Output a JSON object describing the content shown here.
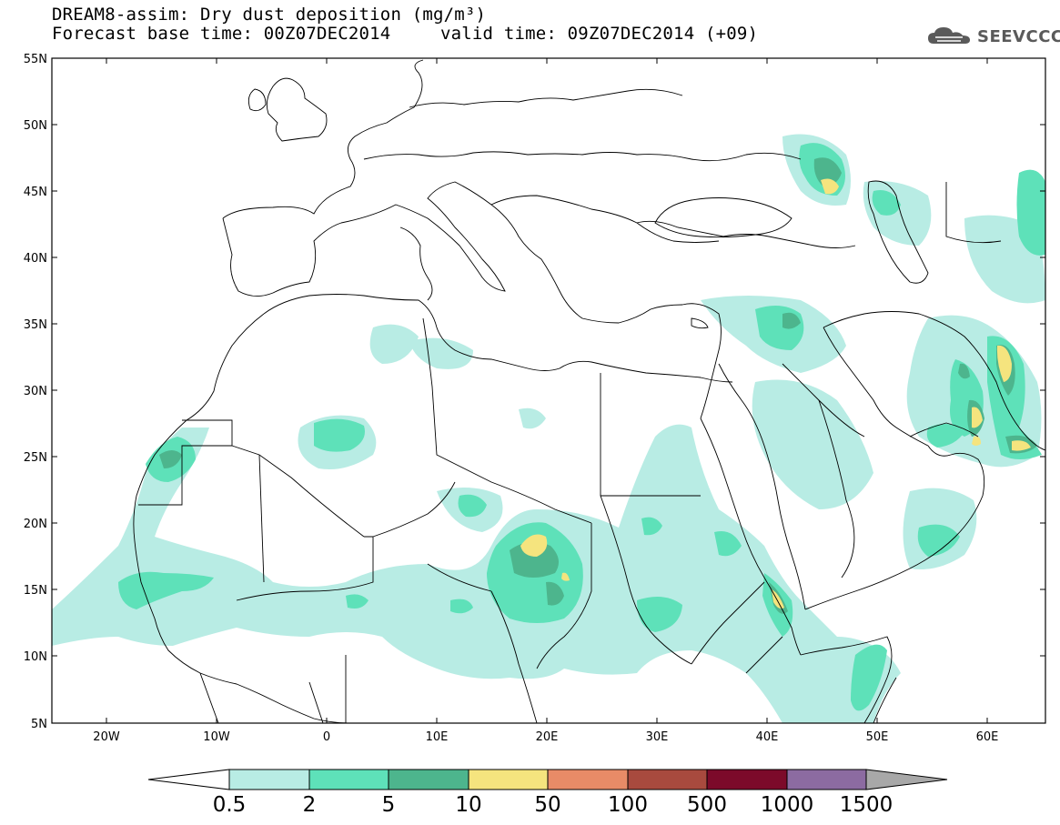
{
  "header": {
    "title": "DREAM8-assim: Dry dust deposition (mg/m³)",
    "base_time": "Forecast base time: 00Z07DEC2014",
    "valid_time": "valid time: 09Z07DEC2014 (+09)"
  },
  "logo": {
    "text": "SEEVCCC",
    "icon": "cloud-icon"
  },
  "map": {
    "lat_labels": [
      "55N",
      "50N",
      "45N",
      "40N",
      "35N",
      "30N",
      "25N",
      "20N",
      "15N",
      "10N",
      "5N"
    ],
    "lon_labels": [
      "20W",
      "10W",
      "0",
      "10E",
      "20E",
      "30E",
      "40E",
      "50E",
      "60E"
    ]
  },
  "colorbar": {
    "labels": [
      "0.5",
      "2",
      "5",
      "10",
      "50",
      "100",
      "500",
      "1000",
      "1500"
    ],
    "colors": [
      "#ffffff",
      "#b8ece4",
      "#5ee1b9",
      "#4db58d",
      "#f5e47e",
      "#e88b67",
      "#a84a3e",
      "#7c0a2a",
      "#8c6ba1",
      "#a8a8a8"
    ]
  },
  "dust_levels": {
    "light": "#b8ece4",
    "medium": "#5ee1b9",
    "dark": "#4db58d",
    "high": "#f5e47e"
  }
}
